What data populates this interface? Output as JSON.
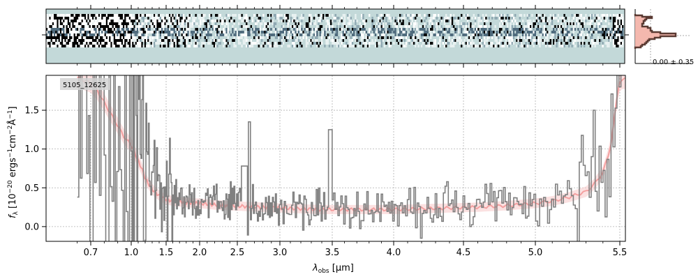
{
  "chart_data": {
    "type": "line",
    "object_label": "5105_12625",
    "xlabel_main": "λ",
    "xlabel_sub": "obs",
    "xlabel_unit": " [μm]",
    "ylabel_prefix": "f",
    "ylabel_sub": "λ",
    "ylabel_unit_open": " [10",
    "ylabel_exp1": "−20",
    "ylabel_mid1": " ergs",
    "ylabel_exp2": "−1",
    "ylabel_mid2": "cm",
    "ylabel_exp3": "−2",
    "ylabel_mid3": "Å",
    "ylabel_exp4": "−1",
    "ylabel_close": "]",
    "x_ticks": [
      0.7,
      1.0,
      1.5,
      2.0,
      2.5,
      3.0,
      3.5,
      4.0,
      4.5,
      5.0,
      5.5
    ],
    "x_tick_labels": [
      "0.7",
      "1.0",
      "1.5",
      "2.0",
      "2.5",
      "3.0",
      "3.5",
      "4.0",
      "4.5",
      "5.0",
      "5.5"
    ],
    "xlim": [
      0.6,
      5.53
    ],
    "y_ticks": [
      0.0,
      0.5,
      1.0,
      1.5
    ],
    "y_tick_labels": [
      "0.0",
      "0.5",
      "1.0",
      "1.5"
    ],
    "ylim": [
      -0.19,
      1.95
    ],
    "grid": true,
    "model_x": [
      0.6,
      0.7,
      0.75,
      0.8,
      0.85,
      0.9,
      0.95,
      1.0,
      1.05,
      1.1,
      1.15,
      1.2,
      1.3,
      1.4,
      1.5,
      1.6,
      1.8,
      2.0,
      2.2,
      2.4,
      2.6,
      2.8,
      3.0,
      3.2,
      3.4,
      3.6,
      3.8,
      4.0,
      4.2,
      4.4,
      4.6,
      4.8,
      5.0,
      5.1,
      5.2,
      5.3,
      5.35,
      5.4,
      5.43,
      5.45,
      5.47,
      5.5
    ],
    "model_y": [
      1.92,
      1.85,
      1.75,
      1.6,
      1.45,
      1.3,
      1.15,
      1.05,
      0.95,
      0.85,
      0.75,
      0.62,
      0.48,
      0.4,
      0.35,
      0.33,
      0.31,
      0.3,
      0.28,
      0.27,
      0.26,
      0.25,
      0.24,
      0.23,
      0.22,
      0.22,
      0.22,
      0.22,
      0.23,
      0.24,
      0.25,
      0.27,
      0.3,
      0.33,
      0.38,
      0.45,
      0.55,
      0.7,
      0.9,
      1.1,
      1.45,
      1.9
    ],
    "flux_envelope_x": [
      0.6,
      0.8,
      1.0,
      1.2,
      1.5,
      2.0,
      2.5,
      3.0,
      3.5,
      4.0,
      4.5,
      5.0,
      5.2,
      5.35,
      5.45,
      5.53
    ],
    "flux_envelope_y": [
      1.9,
      1.6,
      1.1,
      0.65,
      0.42,
      0.34,
      0.3,
      0.26,
      0.24,
      0.23,
      0.25,
      0.3,
      0.36,
      0.48,
      0.9,
      1.9
    ],
    "flux_scatter": [
      1.6,
      1.5,
      1.4,
      1.2,
      1.0,
      0.85,
      0.7,
      0.55,
      0.48,
      0.42,
      0.38,
      0.35,
      0.33,
      0.32,
      0.31,
      0.3,
      0.3,
      0.29,
      0.29,
      0.28,
      0.28,
      0.28,
      0.28,
      0.28,
      0.29,
      0.3,
      0.33,
      0.4,
      0.55,
      0.9
    ],
    "spectrum2d": {
      "colors": [
        "#c3d9d9",
        "#000000",
        "#ffffff",
        "#4f6b7d"
      ]
    },
    "profile": {
      "label": "0.00 ± 0.35",
      "color": "#5a3a32",
      "fill": "#f4b8ae"
    },
    "colors": {
      "data": "#808080",
      "model": "#f4a0a0",
      "model_dark": "#c84040",
      "grid": "#b0b0b0",
      "label_bg": "#d3d3d3"
    }
  }
}
